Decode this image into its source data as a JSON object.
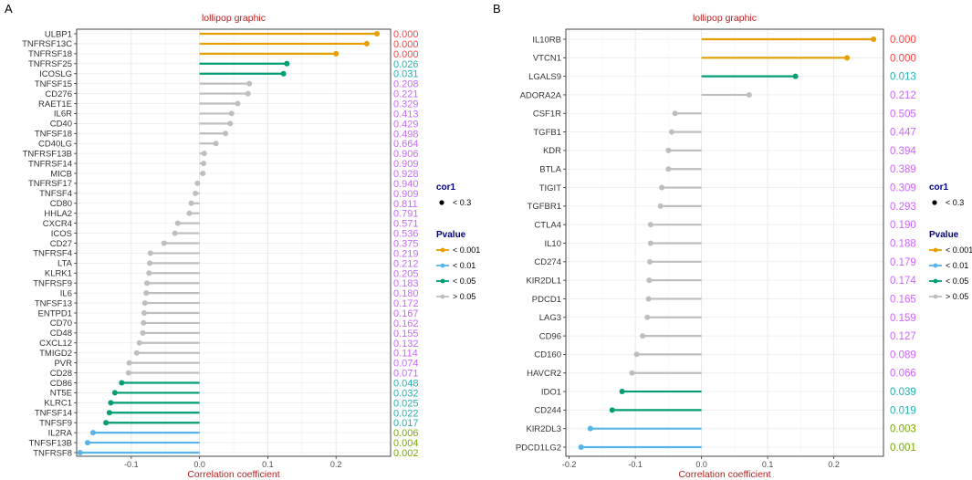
{
  "colors": {
    "p001": "#E69F00",
    "p01": "#56B4E9",
    "p05": "#009E73",
    "pns": "#BEBEBE",
    "title": "#B22222",
    "pval_ns": "#CC66FF",
    "pval_001": "#FF4040",
    "pval_01": "#77AA00",
    "pval_05": "#22B2B2",
    "legend_title": "#000080"
  },
  "chart_data": [
    {
      "type": "lollipop",
      "panel_label": "A",
      "title": "lollipop graphic",
      "xlabel": "Correlation coefficient",
      "xlim": [
        -0.18,
        0.28
      ],
      "xticks": [
        -0.1,
        0.0,
        0.1,
        0.2
      ],
      "xtick_labels": [
        "-0.1",
        "0.0",
        "0.1",
        "0.2"
      ],
      "grid": true,
      "legend_position": "right",
      "legend": {
        "size_title": "cor1",
        "size_label": "< 0.3",
        "color_title": "Pvalue",
        "items": [
          {
            "label": "< 0.001",
            "color_key": "p001"
          },
          {
            "label": "< 0.01",
            "color_key": "p01"
          },
          {
            "label": "< 0.05",
            "color_key": "p05"
          },
          {
            "label": "> 0.05",
            "color_key": "pns"
          }
        ]
      },
      "genes": [
        {
          "name": "ULBP1",
          "value": 0.26,
          "pvalue": "0.000",
          "group": "p001"
        },
        {
          "name": "TNFRSF13C",
          "value": 0.245,
          "pvalue": "0.000",
          "group": "p001"
        },
        {
          "name": "TNFRSF18",
          "value": 0.2,
          "pvalue": "0.000",
          "group": "p001"
        },
        {
          "name": "TNFRSF25",
          "value": 0.128,
          "pvalue": "0.026",
          "group": "p05"
        },
        {
          "name": "ICOSLG",
          "value": 0.123,
          "pvalue": "0.031",
          "group": "p05"
        },
        {
          "name": "TNFSF15",
          "value": 0.073,
          "pvalue": "0.208",
          "group": "pns"
        },
        {
          "name": "CD276",
          "value": 0.071,
          "pvalue": "0.221",
          "group": "pns"
        },
        {
          "name": "RAET1E",
          "value": 0.056,
          "pvalue": "0.329",
          "group": "pns"
        },
        {
          "name": "IL6R",
          "value": 0.047,
          "pvalue": "0.413",
          "group": "pns"
        },
        {
          "name": "CD40",
          "value": 0.045,
          "pvalue": "0.429",
          "group": "pns"
        },
        {
          "name": "TNFSF18",
          "value": 0.038,
          "pvalue": "0.498",
          "group": "pns"
        },
        {
          "name": "CD40LG",
          "value": 0.024,
          "pvalue": "0.664",
          "group": "pns"
        },
        {
          "name": "TNFRSF13B",
          "value": 0.007,
          "pvalue": "0.906",
          "group": "pns"
        },
        {
          "name": "TNFRSF14",
          "value": 0.006,
          "pvalue": "0.909",
          "group": "pns"
        },
        {
          "name": "MICB",
          "value": 0.005,
          "pvalue": "0.928",
          "group": "pns"
        },
        {
          "name": "TNFRSF17",
          "value": -0.003,
          "pvalue": "0.940",
          "group": "pns"
        },
        {
          "name": "TNFSF4",
          "value": -0.006,
          "pvalue": "0.909",
          "group": "pns"
        },
        {
          "name": "CD80",
          "value": -0.012,
          "pvalue": "0.811",
          "group": "pns"
        },
        {
          "name": "HHLA2",
          "value": -0.015,
          "pvalue": "0.791",
          "group": "pns"
        },
        {
          "name": "CXCR4",
          "value": -0.032,
          "pvalue": "0.571",
          "group": "pns"
        },
        {
          "name": "ICOS",
          "value": -0.036,
          "pvalue": "0.536",
          "group": "pns"
        },
        {
          "name": "CD27",
          "value": -0.052,
          "pvalue": "0.375",
          "group": "pns"
        },
        {
          "name": "TNFRSF4",
          "value": -0.072,
          "pvalue": "0.219",
          "group": "pns"
        },
        {
          "name": "LTA",
          "value": -0.073,
          "pvalue": "0.212",
          "group": "pns"
        },
        {
          "name": "KLRK1",
          "value": -0.074,
          "pvalue": "0.205",
          "group": "pns"
        },
        {
          "name": "TNFRSF9",
          "value": -0.077,
          "pvalue": "0.183",
          "group": "pns"
        },
        {
          "name": "IL6",
          "value": -0.078,
          "pvalue": "0.180",
          "group": "pns"
        },
        {
          "name": "TNFSF13",
          "value": -0.08,
          "pvalue": "0.172",
          "group": "pns"
        },
        {
          "name": "ENTPD1",
          "value": -0.081,
          "pvalue": "0.167",
          "group": "pns"
        },
        {
          "name": "CD70",
          "value": -0.082,
          "pvalue": "0.162",
          "group": "pns"
        },
        {
          "name": "CD48",
          "value": -0.083,
          "pvalue": "0.155",
          "group": "pns"
        },
        {
          "name": "CXCL12",
          "value": -0.088,
          "pvalue": "0.132",
          "group": "pns"
        },
        {
          "name": "TMIGD2",
          "value": -0.092,
          "pvalue": "0.114",
          "group": "pns"
        },
        {
          "name": "PVR",
          "value": -0.103,
          "pvalue": "0.074",
          "group": "pns"
        },
        {
          "name": "CD28",
          "value": -0.104,
          "pvalue": "0.071",
          "group": "pns"
        },
        {
          "name": "CD86",
          "value": -0.114,
          "pvalue": "0.048",
          "group": "p05"
        },
        {
          "name": "NT5E",
          "value": -0.124,
          "pvalue": "0.032",
          "group": "p05"
        },
        {
          "name": "KLRC1",
          "value": -0.13,
          "pvalue": "0.025",
          "group": "p05"
        },
        {
          "name": "TNFSF14",
          "value": -0.132,
          "pvalue": "0.022",
          "group": "p05"
        },
        {
          "name": "TNFSF9",
          "value": -0.137,
          "pvalue": "0.017",
          "group": "p05"
        },
        {
          "name": "IL2RA",
          "value": -0.156,
          "pvalue": "0.006",
          "group": "p01"
        },
        {
          "name": "TNFSF13B",
          "value": -0.164,
          "pvalue": "0.004",
          "group": "p01"
        },
        {
          "name": "TNFRSF8",
          "value": -0.175,
          "pvalue": "0.002",
          "group": "p01"
        }
      ]
    },
    {
      "type": "lollipop",
      "panel_label": "B",
      "title": "lollipop graphic",
      "xlabel": "Correlation coefficient",
      "xlim": [
        -0.205,
        0.275
      ],
      "xticks": [
        -0.2,
        -0.1,
        0.0,
        0.1,
        0.2
      ],
      "xtick_labels": [
        "-0.2",
        "-0.1",
        "0.0",
        "0.1",
        "0.2"
      ],
      "grid": true,
      "legend_position": "right",
      "legend": {
        "size_title": "cor1",
        "size_label": "< 0.3",
        "color_title": "Pvalue",
        "items": [
          {
            "label": "< 0.001",
            "color_key": "p001"
          },
          {
            "label": "< 0.01",
            "color_key": "p01"
          },
          {
            "label": "< 0.05",
            "color_key": "p05"
          },
          {
            "label": "> 0.05",
            "color_key": "pns"
          }
        ]
      },
      "genes": [
        {
          "name": "IL10RB",
          "value": 0.26,
          "pvalue": "0.000",
          "group": "p001"
        },
        {
          "name": "VTCN1",
          "value": 0.22,
          "pvalue": "0.000",
          "group": "p001"
        },
        {
          "name": "LGALS9",
          "value": 0.142,
          "pvalue": "0.013",
          "group": "p05"
        },
        {
          "name": "ADORA2A",
          "value": 0.072,
          "pvalue": "0.212",
          "group": "pns"
        },
        {
          "name": "CSF1R",
          "value": -0.04,
          "pvalue": "0.505",
          "group": "pns"
        },
        {
          "name": "TGFB1",
          "value": -0.045,
          "pvalue": "0.447",
          "group": "pns"
        },
        {
          "name": "KDR",
          "value": -0.05,
          "pvalue": "0.394",
          "group": "pns"
        },
        {
          "name": "BTLA",
          "value": -0.05,
          "pvalue": "0.389",
          "group": "pns"
        },
        {
          "name": "TIGIT",
          "value": -0.06,
          "pvalue": "0.309",
          "group": "pns"
        },
        {
          "name": "TGFBR1",
          "value": -0.062,
          "pvalue": "0.293",
          "group": "pns"
        },
        {
          "name": "CTLA4",
          "value": -0.077,
          "pvalue": "0.190",
          "group": "pns"
        },
        {
          "name": "IL10",
          "value": -0.077,
          "pvalue": "0.188",
          "group": "pns"
        },
        {
          "name": "CD274",
          "value": -0.078,
          "pvalue": "0.179",
          "group": "pns"
        },
        {
          "name": "KIR2DL1",
          "value": -0.079,
          "pvalue": "0.174",
          "group": "pns"
        },
        {
          "name": "PDCD1",
          "value": -0.08,
          "pvalue": "0.165",
          "group": "pns"
        },
        {
          "name": "LAG3",
          "value": -0.082,
          "pvalue": "0.159",
          "group": "pns"
        },
        {
          "name": "CD96",
          "value": -0.089,
          "pvalue": "0.127",
          "group": "pns"
        },
        {
          "name": "CD160",
          "value": -0.098,
          "pvalue": "0.089",
          "group": "pns"
        },
        {
          "name": "HAVCR2",
          "value": -0.105,
          "pvalue": "0.066",
          "group": "pns"
        },
        {
          "name": "IDO1",
          "value": -0.12,
          "pvalue": "0.039",
          "group": "p05"
        },
        {
          "name": "CD244",
          "value": -0.135,
          "pvalue": "0.019",
          "group": "p05"
        },
        {
          "name": "KIR2DL3",
          "value": -0.168,
          "pvalue": "0.003",
          "group": "p01"
        },
        {
          "name": "PDCD1LG2",
          "value": -0.182,
          "pvalue": "0.001",
          "group": "p01"
        }
      ]
    }
  ]
}
